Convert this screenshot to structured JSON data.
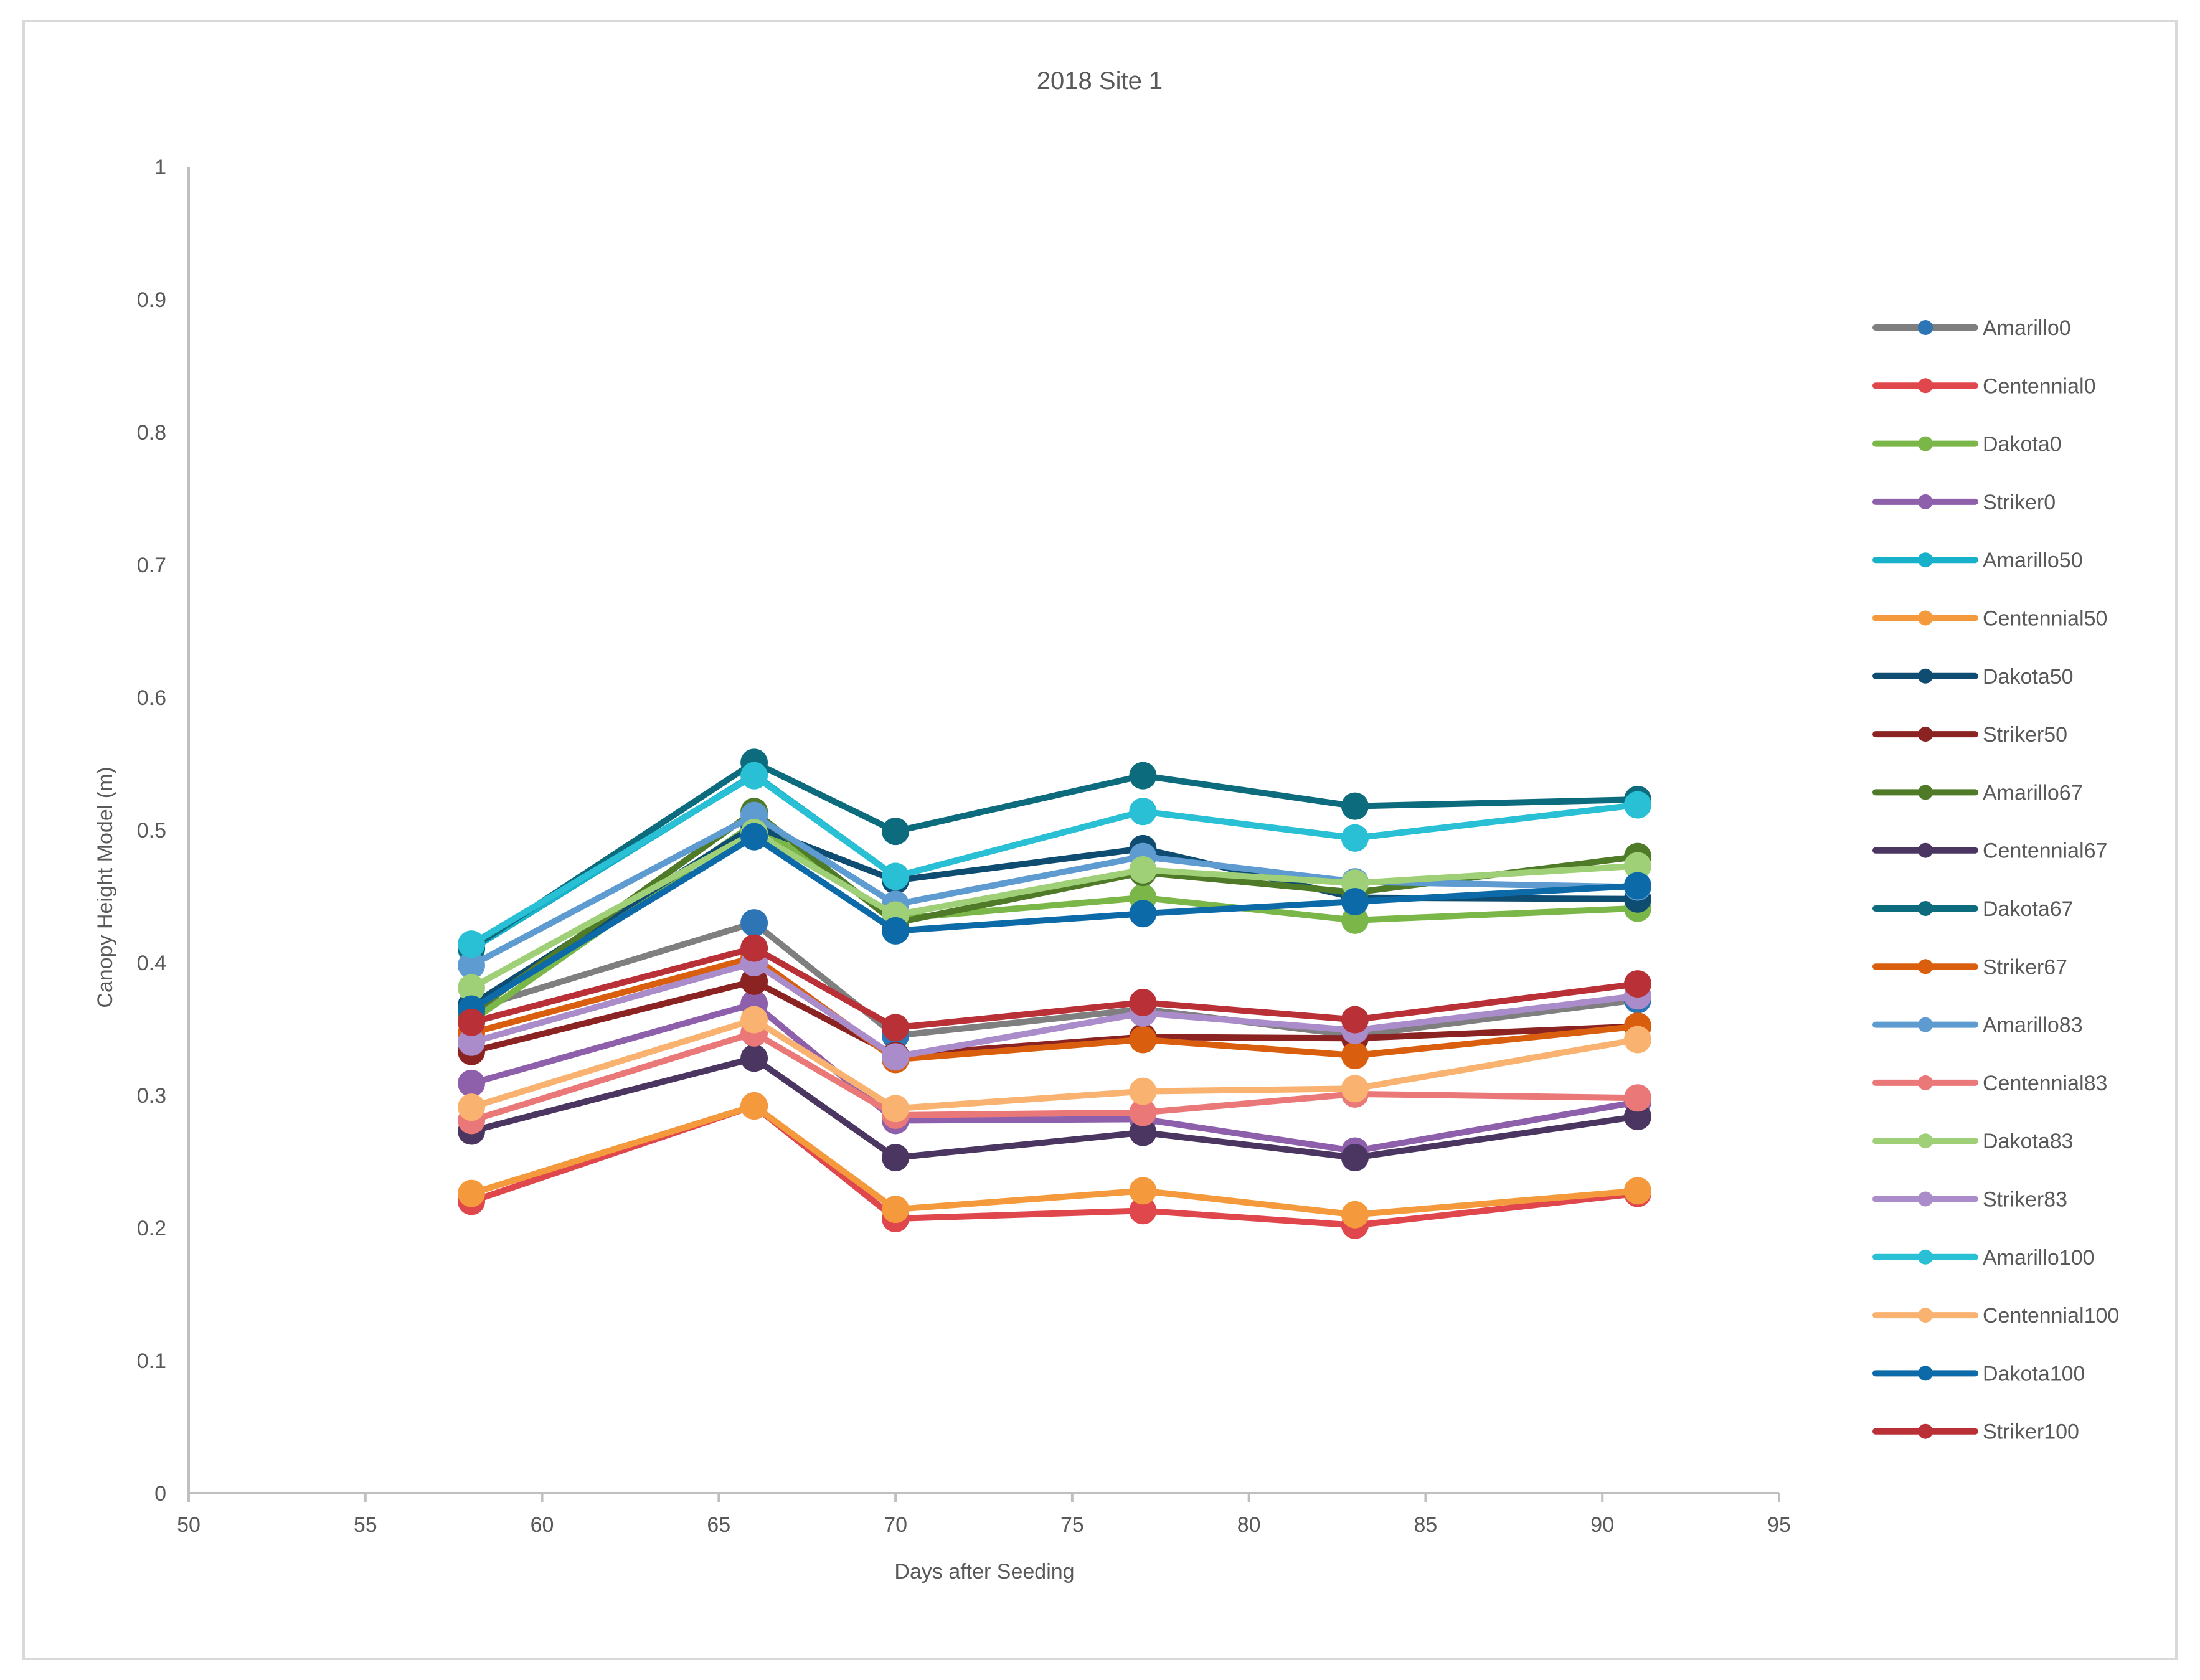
{
  "chart_data": {
    "type": "line",
    "title": "2018 Site 1",
    "xlabel": "Days after Seeding",
    "ylabel": "Canopy Height Model (m)",
    "xlim": [
      50,
      95
    ],
    "ylim": [
      0,
      1
    ],
    "x_ticks": [
      50,
      55,
      60,
      65,
      70,
      75,
      80,
      85,
      90,
      95
    ],
    "y_ticks": [
      0,
      0.1,
      0.2,
      0.3,
      0.4,
      0.5,
      0.6,
      0.7,
      0.8,
      0.9,
      1
    ],
    "x_tick_labels": [
      "50",
      "55",
      "60",
      "65",
      "70",
      "75",
      "80",
      "85",
      "90",
      "95"
    ],
    "y_tick_labels": [
      "0",
      "0.1",
      "0.2",
      "0.3",
      "0.4",
      "0.5",
      "0.6",
      "0.7",
      "0.8",
      "0.9",
      "1"
    ],
    "x": [
      58,
      66,
      70,
      77,
      83,
      91
    ],
    "grid": false,
    "legend_position": "right",
    "series": [
      {
        "name": "Amarillo0",
        "line_color": "#7f7f7f",
        "marker_color": "#2e75b6",
        "values": [
          0.365,
          0.43,
          0.345,
          0.365,
          0.345,
          0.372
        ]
      },
      {
        "name": "Centennial0",
        "line_color": "#e0474c",
        "marker_color": "#e0474c",
        "values": [
          0.22,
          0.292,
          0.207,
          0.213,
          0.202,
          0.226
        ]
      },
      {
        "name": "Dakota0",
        "line_color": "#7ab648",
        "marker_color": "#7ab648",
        "values": [
          0.356,
          0.505,
          0.433,
          0.449,
          0.432,
          0.441
        ]
      },
      {
        "name": "Striker0",
        "line_color": "#8e5fab",
        "marker_color": "#8e5fab",
        "values": [
          0.309,
          0.369,
          0.281,
          0.282,
          0.258,
          0.295
        ]
      },
      {
        "name": "Amarillo50",
        "line_color": "#17b1c9",
        "marker_color": "#17b1c9",
        "values": [
          0.41,
          0.542,
          0.465,
          0.514,
          0.494,
          0.519
        ]
      },
      {
        "name": "Centennial50",
        "line_color": "#f59a3c",
        "marker_color": "#f59a3c",
        "values": [
          0.226,
          0.292,
          0.214,
          0.228,
          0.21,
          0.228
        ]
      },
      {
        "name": "Dakota50",
        "line_color": "#0e4c72",
        "marker_color": "#0e4c72",
        "values": [
          0.368,
          0.503,
          0.462,
          0.486,
          0.449,
          0.448
        ]
      },
      {
        "name": "Striker50",
        "line_color": "#8b2323",
        "marker_color": "#8b2323",
        "values": [
          0.333,
          0.386,
          0.33,
          0.344,
          0.343,
          0.352
        ]
      },
      {
        "name": "Amarillo67",
        "line_color": "#4f7a28",
        "marker_color": "#4f7a28",
        "values": [
          0.362,
          0.514,
          0.43,
          0.468,
          0.453,
          0.48
        ]
      },
      {
        "name": "Centennial67",
        "line_color": "#4b3561",
        "marker_color": "#4b3561",
        "values": [
          0.273,
          0.328,
          0.253,
          0.272,
          0.253,
          0.284
        ]
      },
      {
        "name": "Dakota67",
        "line_color": "#0d6b7e",
        "marker_color": "#0d6b7e",
        "values": [
          0.411,
          0.551,
          0.499,
          0.541,
          0.518,
          0.523
        ]
      },
      {
        "name": "Striker67",
        "line_color": "#d95f0e",
        "marker_color": "#d95f0e",
        "values": [
          0.347,
          0.404,
          0.327,
          0.342,
          0.33,
          0.352
        ]
      },
      {
        "name": "Amarillo83",
        "line_color": "#5e9bd1",
        "marker_color": "#5e9bd1",
        "values": [
          0.398,
          0.511,
          0.444,
          0.48,
          0.461,
          0.457
        ]
      },
      {
        "name": "Centennial83",
        "line_color": "#eb7878",
        "marker_color": "#eb7878",
        "values": [
          0.281,
          0.347,
          0.285,
          0.287,
          0.301,
          0.298
        ]
      },
      {
        "name": "Dakota83",
        "line_color": "#9fd077",
        "marker_color": "#9fd077",
        "values": [
          0.381,
          0.498,
          0.436,
          0.47,
          0.46,
          0.473
        ]
      },
      {
        "name": "Striker83",
        "line_color": "#a98cc9",
        "marker_color": "#a98cc9",
        "values": [
          0.34,
          0.4,
          0.329,
          0.362,
          0.349,
          0.375
        ]
      },
      {
        "name": "Amarillo100",
        "line_color": "#29c0d6",
        "marker_color": "#29c0d6",
        "values": [
          0.414,
          0.541,
          0.465,
          0.514,
          0.494,
          0.519
        ]
      },
      {
        "name": "Centennial100",
        "line_color": "#f9b26f",
        "marker_color": "#f9b26f",
        "values": [
          0.291,
          0.357,
          0.29,
          0.303,
          0.305,
          0.342
        ]
      },
      {
        "name": "Dakota100",
        "line_color": "#0c6aa8",
        "marker_color": "#0c6aa8",
        "values": [
          0.365,
          0.495,
          0.424,
          0.437,
          0.446,
          0.458
        ]
      },
      {
        "name": "Striker100",
        "line_color": "#b93036",
        "marker_color": "#b93036",
        "values": [
          0.355,
          0.411,
          0.351,
          0.37,
          0.357,
          0.384
        ]
      }
    ]
  }
}
